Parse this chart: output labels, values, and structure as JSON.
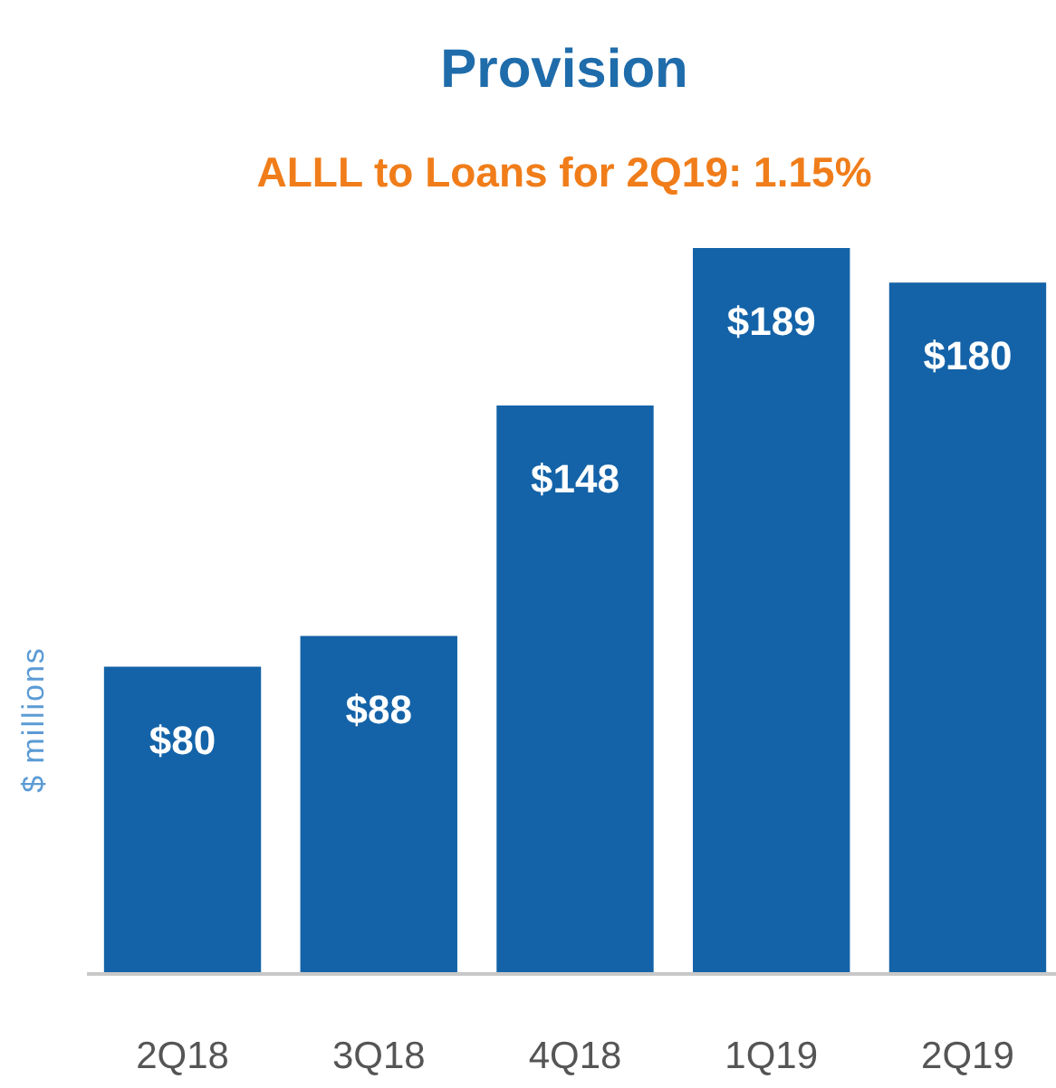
{
  "chart_data": {
    "type": "bar",
    "title": "Provision",
    "subtitle": "ALLL to Loans for 2Q19: 1.15%",
    "ylabel": "$ millions",
    "categories": [
      "2Q18",
      "3Q18",
      "4Q18",
      "1Q19",
      "2Q19"
    ],
    "values": [
      80,
      88,
      148,
      189,
      180
    ],
    "value_labels": [
      "$80",
      "$88",
      "$148",
      "$189",
      "$180"
    ],
    "color": "#1463a8"
  }
}
